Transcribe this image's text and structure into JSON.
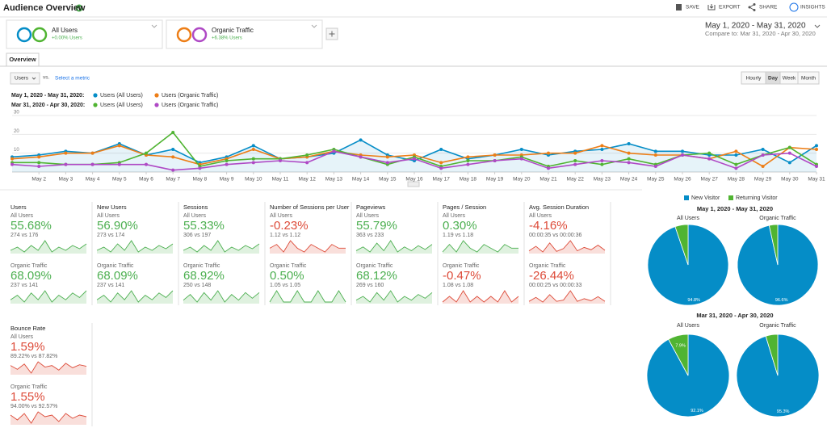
{
  "header": {
    "title": "Audience Overview",
    "actions": [
      "SAVE",
      "EXPORT",
      "SHARE",
      "INSIGHTS"
    ]
  },
  "segments": [
    {
      "name": "All Users",
      "change": "+0.00% Users",
      "color": "#058dc7"
    },
    {
      "name": "Organic Traffic",
      "change": "+6.38% Users",
      "color": "#ed7e17"
    }
  ],
  "date_range": {
    "current": "May 1, 2020 - May 31, 2020",
    "compare": "Compare to: Mar 31, 2020 - Apr 30, 2020"
  },
  "tab": "Overview",
  "metric_select": {
    "metric": "Users",
    "vs": "vs.",
    "select": "Select a metric"
  },
  "granularity": {
    "options": [
      "Hourly",
      "Day",
      "Week",
      "Month"
    ],
    "selected": 1
  },
  "line_chart": {
    "type": "line",
    "periods": [
      {
        "label": "May 1, 2020 - May 31, 2020:",
        "series": [
          {
            "name": "Users (All Users)",
            "color": "#058dc7",
            "values": [
              8,
              9,
              11,
              10,
              15,
              9,
              12,
              5,
              8,
              14,
              7,
              8,
              10,
              17,
              9,
              6,
              12,
              7,
              9,
              12,
              9,
              11,
              12,
              15,
              11,
              11,
              9,
              9,
              12,
              5,
              14
            ]
          },
          {
            "name": "Users (Organic Traffic)",
            "color": "#ed7e17",
            "values": [
              7,
              8,
              10,
              10,
              14,
              9,
              8,
              4,
              7,
              12,
              7,
              8,
              11,
              9,
              8,
              9,
              5,
              8,
              9,
              9,
              10,
              10,
              14,
              10,
              9,
              9,
              7,
              11,
              3,
              13,
              12
            ]
          }
        ]
      },
      {
        "label": "Mar 31, 2020 - Apr 30, 2020:",
        "series": [
          {
            "name": "Users (All Users)",
            "color": "#50b432",
            "values": [
              5,
              5,
              4,
              4,
              5,
              10,
              21,
              3,
              6,
              7,
              7,
              9,
              12,
              8,
              4,
              8,
              3,
              6,
              6,
              8,
              3,
              6,
              4,
              7,
              4,
              9,
              10,
              4,
              9,
              13,
              4
            ]
          },
          {
            "name": "Users (Organic Traffic)",
            "color": "#af49c5",
            "values": [
              4,
              3,
              4,
              4,
              4,
              4,
              1,
              2,
              4,
              5,
              6,
              5,
              11,
              8,
              5,
              7,
              2,
              4,
              6,
              7,
              2,
              4,
              6,
              5,
              3,
              9,
              7,
              2,
              9,
              10,
              3
            ]
          }
        ]
      }
    ],
    "categories": [
      null,
      "May 2",
      "May 3",
      "May 4",
      "May 5",
      "May 6",
      "May 7",
      "May 8",
      "May 9",
      "May 10",
      "May 11",
      "May 12",
      "May 13",
      "May 14",
      "May 15",
      "May 16",
      "May 17",
      "May 18",
      "May 19",
      "May 20",
      "May 21",
      "May 22",
      "May 23",
      "May 24",
      "May 25",
      "May 26",
      "May 27",
      "May 28",
      "May 29",
      "May 30",
      "May 31"
    ],
    "ylim": [
      0,
      30
    ],
    "yticks": [
      10,
      20,
      30
    ],
    "grid": true
  },
  "metrics": [
    {
      "title": "Users",
      "segments": [
        {
          "label": "All Users",
          "value": "55.68%",
          "compare": "274 vs 176",
          "color": "#4caf50",
          "spark": [
            6,
            8,
            5,
            9,
            6,
            12,
            5,
            8,
            6,
            9,
            7,
            10
          ]
        },
        {
          "label": "Organic Traffic",
          "value": "68.09%",
          "compare": "237 vs 141",
          "color": "#4caf50",
          "spark": [
            5,
            7,
            4,
            8,
            5,
            9,
            4,
            7,
            5,
            8,
            6,
            9
          ]
        }
      ]
    },
    {
      "title": "New Users",
      "segments": [
        {
          "label": "All Users",
          "value": "56.90%",
          "compare": "273 vs 174",
          "color": "#4caf50",
          "spark": [
            6,
            8,
            5,
            10,
            6,
            12,
            5,
            8,
            6,
            9,
            7,
            10
          ]
        },
        {
          "label": "Organic Traffic",
          "value": "68.09%",
          "compare": "237 vs 141",
          "color": "#4caf50",
          "spark": [
            5,
            7,
            4,
            8,
            5,
            9,
            4,
            7,
            5,
            8,
            6,
            9
          ]
        }
      ]
    },
    {
      "title": "Sessions",
      "segments": [
        {
          "label": "All Users",
          "value": "55.33%",
          "compare": "306 vs 197",
          "color": "#4caf50",
          "spark": [
            7,
            9,
            6,
            10,
            7,
            13,
            6,
            9,
            7,
            10,
            8,
            11
          ]
        },
        {
          "label": "Organic Traffic",
          "value": "68.92%",
          "compare": "250 vs 148",
          "color": "#4caf50",
          "spark": [
            5,
            8,
            4,
            9,
            5,
            10,
            4,
            8,
            5,
            9,
            6,
            9
          ]
        }
      ]
    },
    {
      "title": "Number of Sessions per User",
      "segments": [
        {
          "label": "All Users",
          "value": "-0.23%",
          "compare": "1.12 vs 1.12",
          "color": "#dd4b39",
          "spark": [
            1.1,
            1.2,
            1.0,
            1.3,
            1.1,
            1.0,
            1.2,
            1.1,
            1.0,
            1.2,
            1.1,
            1.1
          ]
        },
        {
          "label": "Organic Traffic",
          "value": "0.50%",
          "compare": "1.05 vs 1.05",
          "color": "#4caf50",
          "spark": [
            1.0,
            1.1,
            1.0,
            1.0,
            1.1,
            1.0,
            1.0,
            1.1,
            1.0,
            1.0,
            1.1,
            1.0
          ]
        }
      ]
    },
    {
      "title": "Pageviews",
      "segments": [
        {
          "label": "All Users",
          "value": "55.79%",
          "compare": "363 vs 233",
          "color": "#4caf50",
          "spark": [
            8,
            11,
            7,
            14,
            8,
            16,
            7,
            11,
            8,
            12,
            9,
            13
          ]
        },
        {
          "label": "Organic Traffic",
          "value": "68.12%",
          "compare": "269 vs 160",
          "color": "#4caf50",
          "spark": [
            6,
            8,
            5,
            10,
            6,
            11,
            5,
            8,
            6,
            9,
            7,
            10
          ]
        }
      ]
    },
    {
      "title": "Pages / Session",
      "segments": [
        {
          "label": "All Users",
          "value": "0.30%",
          "compare": "1.19 vs 1.18",
          "color": "#4caf50",
          "spark": [
            1.1,
            1.3,
            1.1,
            1.4,
            1.2,
            1.1,
            1.3,
            1.2,
            1.1,
            1.3,
            1.2,
            1.2
          ]
        },
        {
          "label": "Organic Traffic",
          "value": "-0.47%",
          "compare": "1.08 vs 1.08",
          "color": "#dd4b39",
          "spark": [
            1.0,
            1.1,
            1.0,
            1.2,
            1.0,
            1.1,
            1.0,
            1.1,
            1.0,
            1.2,
            1.0,
            1.1
          ]
        }
      ]
    },
    {
      "title": "Avg. Session Duration",
      "segments": [
        {
          "label": "All Users",
          "value": "-4.16%",
          "compare": "00:00:35 vs 00:00:36",
          "color": "#dd4b39",
          "spark": [
            20,
            60,
            10,
            90,
            15,
            40,
            110,
            20,
            50,
            30,
            70,
            25
          ]
        },
        {
          "label": "Organic Traffic",
          "value": "-26.44%",
          "compare": "00:00:25 vs 00:00:33",
          "color": "#dd4b39",
          "spark": [
            10,
            40,
            5,
            60,
            10,
            20,
            90,
            10,
            30,
            15,
            45,
            10
          ]
        }
      ]
    },
    {
      "title": "Bounce Rate",
      "segments": [
        {
          "label": "All Users",
          "value": "1.59%",
          "compare": "89.22% vs 87.82%",
          "color": "#dd4b39",
          "spark": [
            90,
            85,
            92,
            80,
            95,
            88,
            90,
            84,
            93,
            87,
            91,
            89
          ]
        },
        {
          "label": "Organic Traffic",
          "value": "1.55%",
          "compare": "94.00% vs 92.57%",
          "color": "#dd4b39",
          "spark": [
            95,
            92,
            96,
            90,
            97,
            94,
            95,
            91,
            96,
            93,
            95,
            94
          ]
        }
      ]
    }
  ],
  "pies": {
    "type": "pie",
    "legend": [
      {
        "name": "New Visitor",
        "color": "#058dc7"
      },
      {
        "name": "Returning Visitor",
        "color": "#50b432"
      }
    ],
    "periods": [
      {
        "title": "May 1, 2020 - May 31, 2020",
        "charts": [
          {
            "label": "All Users",
            "values": [
              94.8,
              5.2
            ],
            "value_labels": [
              "94.8%",
              null
            ]
          },
          {
            "label": "Organic Traffic",
            "values": [
              96.6,
              3.4
            ],
            "value_labels": [
              "96.6%",
              null
            ]
          }
        ]
      },
      {
        "title": "Mar 31, 2020 - Apr 30, 2020",
        "charts": [
          {
            "label": "All Users",
            "values": [
              92.1,
              7.9
            ],
            "value_labels": [
              "92.1%",
              "7.9%"
            ]
          },
          {
            "label": "Organic Traffic",
            "values": [
              95.3,
              4.7
            ],
            "value_labels": [
              "95.3%",
              null
            ]
          }
        ]
      }
    ]
  }
}
